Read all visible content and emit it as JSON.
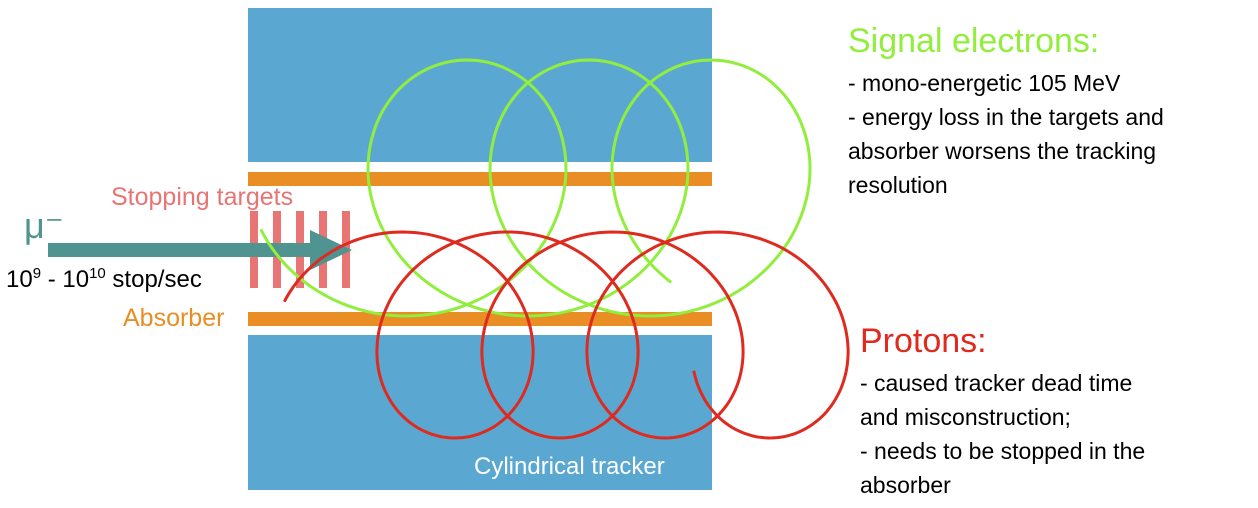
{
  "labels": {
    "particle": "μ⁻",
    "rate_base1": "10",
    "rate_exp1": "9",
    "rate_sep": " - ",
    "rate_base2": "10",
    "rate_exp2": "10",
    "rate_unit": " stop/sec",
    "stopping_targets": "Stopping targets",
    "absorber": "Absorber",
    "tracker": "Cylindrical tracker"
  },
  "signal": {
    "title": "Signal electrons:",
    "lines": [
      "- mono-energetic 105 MeV",
      "- energy loss in the targets and",
      "absorber worsens the tracking",
      "resolution"
    ]
  },
  "protons": {
    "title": "Protons:",
    "lines": [
      "- caused tracker dead time",
      "and misconstruction;",
      "- needs to be stopped in the",
      "absorber"
    ]
  },
  "colors": {
    "tracker": "#5aa8d2",
    "absorber": "#e88e25",
    "targets": "#e87474",
    "muon": "#4f9490",
    "electron": "#92ee3c",
    "proton": "#de2a1f"
  }
}
